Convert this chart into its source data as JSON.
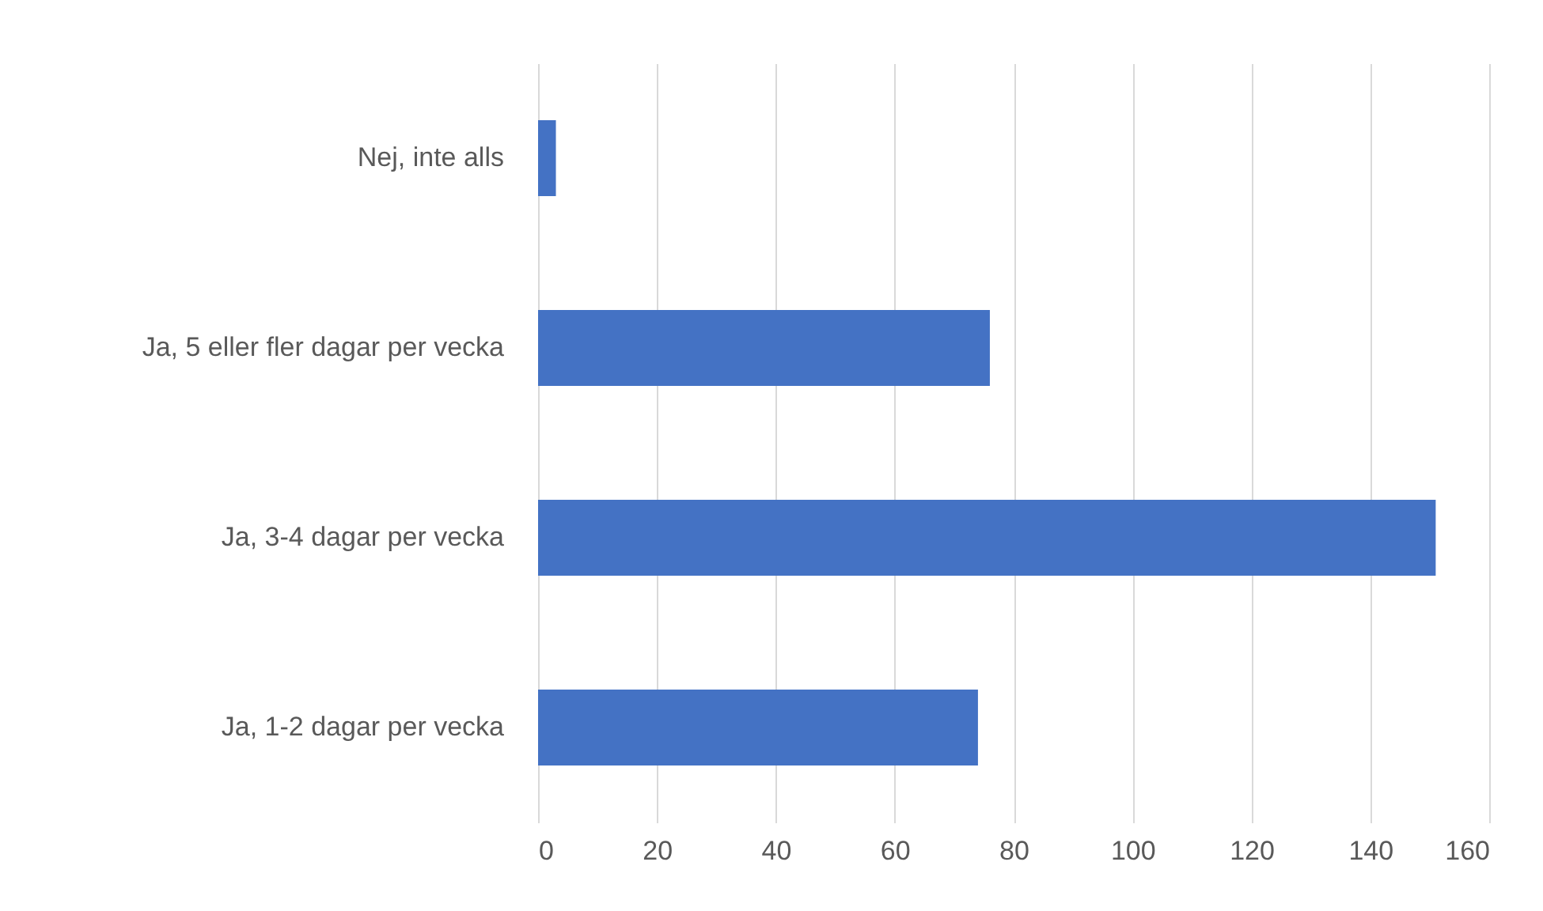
{
  "chart_data": {
    "type": "bar",
    "orientation": "horizontal",
    "categories": [
      "Nej, inte alls",
      "Ja, 5 eller fler dagar per vecka",
      "Ja, 3-4 dagar per vecka",
      "Ja, 1-2 dagar per vecka"
    ],
    "values": [
      3,
      76,
      151,
      74
    ],
    "color": "#4472c4",
    "xlim": [
      0,
      160
    ],
    "xticks": [
      0,
      20,
      40,
      60,
      80,
      100,
      120,
      140,
      160
    ],
    "grid": "x"
  }
}
